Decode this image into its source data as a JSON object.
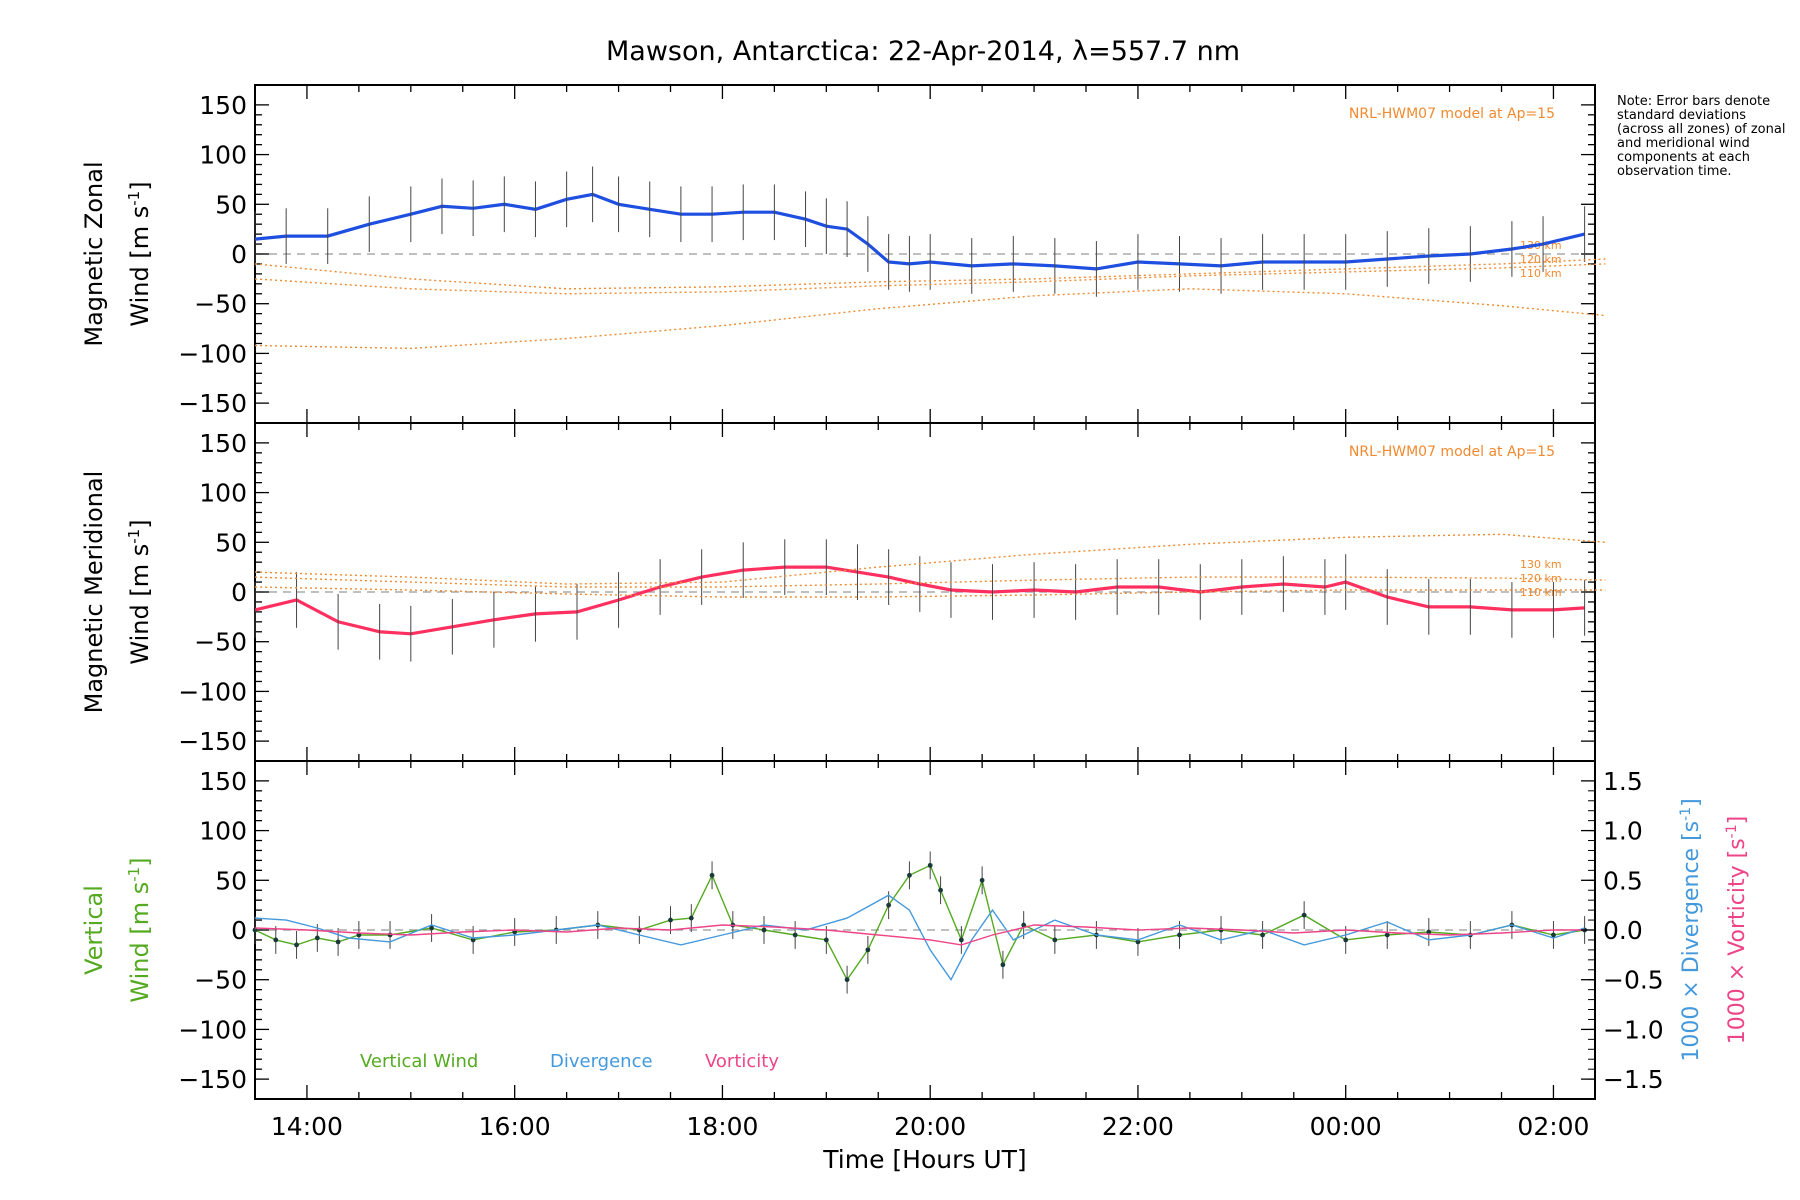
{
  "title": "Mawson, Antarctica: 22-Apr-2014, λ=557.7 nm",
  "note": "Note: Error bars denote standard deviations (across all zones) of zonal and meridional wind components at each observation time.",
  "chart_data": [
    {
      "type": "line",
      "panel": "zonal",
      "ylabel_line1": "Magnetic Zonal",
      "ylabel_line2": "Wind [m s",
      "ylabel_sup": "-1",
      "ylabel_close": "]",
      "ylim": [
        -170,
        170
      ],
      "yticks": [
        -150,
        -100,
        -50,
        0,
        50,
        100,
        150
      ],
      "model_label": "NRL-HWM07 model at Ap=15",
      "altitude_labels": [
        "130 km",
        "120 km",
        "110 km"
      ],
      "series": [
        {
          "color": "#1f4fe0",
          "x": [
            13.5,
            13.8,
            14.2,
            14.6,
            15.0,
            15.3,
            15.6,
            15.9,
            16.2,
            16.5,
            16.75,
            17.0,
            17.3,
            17.6,
            17.9,
            18.2,
            18.5,
            18.8,
            19.0,
            19.2,
            19.4,
            19.6,
            19.8,
            20.0,
            20.4,
            20.8,
            21.2,
            21.6,
            22.0,
            22.4,
            22.8,
            23.2,
            23.6,
            24.0,
            24.4,
            24.8,
            25.2,
            25.6,
            25.9,
            26.3
          ],
          "y": [
            15,
            18,
            18,
            30,
            40,
            48,
            46,
            50,
            45,
            55,
            60,
            50,
            45,
            40,
            40,
            42,
            42,
            35,
            28,
            25,
            10,
            -8,
            -10,
            -8,
            -12,
            -10,
            -12,
            -15,
            -8,
            -10,
            -12,
            -8,
            -8,
            -8,
            -5,
            -2,
            0,
            5,
            10,
            20
          ]
        },
        {
          "color": "#f08a30",
          "style": "dotted",
          "x": [
            13.5,
            15,
            16.5,
            18,
            19.5,
            21,
            22.5,
            24,
            25.5,
            26.5
          ],
          "y": [
            -10,
            -25,
            -35,
            -33,
            -28,
            -25,
            -20,
            -15,
            -10,
            -5
          ]
        },
        {
          "color": "#f08a30",
          "style": "dotted",
          "x": [
            13.5,
            15,
            16.5,
            18,
            19.5,
            21,
            22.5,
            24,
            25.5,
            26.5
          ],
          "y": [
            -25,
            -35,
            -40,
            -38,
            -32,
            -28,
            -22,
            -18,
            -14,
            -10
          ]
        },
        {
          "color": "#f08a30",
          "style": "dotted",
          "x": [
            13.5,
            15,
            16.5,
            18,
            19.5,
            21,
            22.5,
            24,
            25.5,
            26.5
          ],
          "y": [
            -92,
            -95,
            -85,
            -72,
            -55,
            -42,
            -35,
            -40,
            -52,
            -62
          ]
        }
      ]
    },
    {
      "type": "line",
      "panel": "meridional",
      "ylabel_line1": "Magnetic Meridional",
      "ylabel_line2": "Wind [m s",
      "ylabel_sup": "-1",
      "ylabel_close": "]",
      "ylim": [
        -170,
        170
      ],
      "yticks": [
        -150,
        -100,
        -50,
        0,
        50,
        100,
        150
      ],
      "model_label": "NRL-HWM07 model at Ap=15",
      "altitude_labels": [
        "130 km",
        "120 km",
        "110 km"
      ],
      "series": [
        {
          "color": "#ff3060",
          "x": [
            13.5,
            13.9,
            14.3,
            14.7,
            15.0,
            15.4,
            15.8,
            16.2,
            16.6,
            17.0,
            17.4,
            17.8,
            18.2,
            18.6,
            19.0,
            19.3,
            19.6,
            19.9,
            20.2,
            20.6,
            21.0,
            21.4,
            21.8,
            22.2,
            22.6,
            23.0,
            23.4,
            23.8,
            24.0,
            24.4,
            24.8,
            25.2,
            25.6,
            26.0,
            26.3
          ],
          "y": [
            -18,
            -8,
            -30,
            -40,
            -42,
            -35,
            -28,
            -22,
            -20,
            -8,
            5,
            15,
            22,
            25,
            25,
            20,
            15,
            8,
            2,
            0,
            2,
            0,
            5,
            5,
            0,
            5,
            8,
            5,
            10,
            -5,
            -15,
            -15,
            -18,
            -18,
            -16
          ]
        },
        {
          "color": "#f08a30",
          "style": "dotted",
          "x": [
            13.5,
            15,
            16.5,
            18,
            19.5,
            21,
            22.5,
            24,
            25.5,
            26.5
          ],
          "y": [
            20,
            15,
            8,
            10,
            25,
            38,
            48,
            55,
            58,
            50
          ]
        },
        {
          "color": "#f08a30",
          "style": "dotted",
          "x": [
            13.5,
            15,
            16.5,
            18,
            19.5,
            21,
            22.5,
            24,
            25.5,
            26.5
          ],
          "y": [
            15,
            10,
            5,
            5,
            8,
            12,
            15,
            15,
            14,
            12
          ]
        },
        {
          "color": "#f08a30",
          "style": "dotted",
          "x": [
            13.5,
            15,
            16.5,
            18,
            19.5,
            21,
            22.5,
            24,
            25.5,
            26.5
          ],
          "y": [
            5,
            2,
            -2,
            -5,
            -5,
            -3,
            0,
            2,
            2,
            2
          ]
        }
      ]
    },
    {
      "type": "line",
      "panel": "vertical",
      "ylabel_line1": "Vertical",
      "ylabel_line2": "Wind [m s",
      "ylabel_sup": "-1",
      "ylabel_close": "]",
      "ylim": [
        -170,
        170
      ],
      "yticks": [
        -150,
        -100,
        -50,
        0,
        50,
        100,
        150
      ],
      "y2ticks": [
        "1.5",
        "1.0",
        "0.5",
        "0.0",
        "−0.5",
        "−1.0",
        "−1.5"
      ],
      "y2label_div_pre": "1000 × Divergence [s",
      "y2label_vort_pre": "1000 × Vorticity [s",
      "y2label_sup": "-1",
      "y2label_close": "]",
      "legend": [
        "Vertical Wind",
        "Divergence",
        "Vorticity"
      ],
      "series": [
        {
          "name": "Vertical Wind",
          "color": "#55aa22",
          "x": [
            13.5,
            13.7,
            13.9,
            14.1,
            14.3,
            14.5,
            14.8,
            15.2,
            15.6,
            16.0,
            16.4,
            16.8,
            17.2,
            17.5,
            17.7,
            17.9,
            18.1,
            18.4,
            18.7,
            19.0,
            19.2,
            19.4,
            19.6,
            19.8,
            20.0,
            20.1,
            20.3,
            20.5,
            20.7,
            20.9,
            21.2,
            21.6,
            22.0,
            22.4,
            22.8,
            23.2,
            23.6,
            24.0,
            24.4,
            24.8,
            25.2,
            25.6,
            26.0,
            26.3
          ],
          "y": [
            0,
            -10,
            -15,
            -8,
            -12,
            -5,
            -5,
            2,
            -10,
            -2,
            0,
            5,
            0,
            10,
            12,
            55,
            5,
            0,
            -5,
            -10,
            -50,
            -20,
            25,
            55,
            65,
            40,
            -10,
            50,
            -35,
            5,
            -10,
            -5,
            -12,
            -5,
            0,
            -5,
            15,
            -10,
            -5,
            -2,
            -5,
            5,
            -5,
            0
          ]
        },
        {
          "name": "Divergence",
          "color": "#4499dd",
          "x": [
            13.5,
            13.8,
            14.1,
            14.4,
            14.8,
            15.2,
            15.6,
            16.0,
            16.4,
            16.8,
            17.2,
            17.6,
            18.0,
            18.4,
            18.8,
            19.2,
            19.6,
            19.8,
            20.0,
            20.2,
            20.4,
            20.6,
            20.8,
            21.2,
            21.6,
            22.0,
            22.4,
            22.8,
            23.2,
            23.6,
            24.0,
            24.4,
            24.8,
            25.2,
            25.6,
            26.0,
            26.3
          ],
          "y": [
            0.12,
            0.1,
            0.02,
            -0.08,
            -0.12,
            0.05,
            -0.08,
            -0.05,
            0.0,
            0.05,
            -0.05,
            -0.15,
            -0.05,
            0.05,
            0.0,
            0.12,
            0.35,
            0.2,
            -0.2,
            -0.5,
            -0.1,
            0.2,
            -0.1,
            0.1,
            -0.05,
            -0.1,
            0.05,
            -0.1,
            0.0,
            -0.15,
            -0.05,
            0.08,
            -0.1,
            -0.05,
            0.05,
            -0.08,
            0.02
          ]
        },
        {
          "name": "Vorticity",
          "color": "#ee4488",
          "x": [
            13.5,
            14.0,
            14.5,
            15.0,
            15.5,
            16.0,
            16.5,
            17.0,
            17.5,
            18.0,
            18.5,
            19.0,
            19.5,
            20.0,
            20.3,
            20.6,
            21.0,
            21.5,
            22.0,
            22.5,
            23.0,
            23.5,
            24.0,
            24.5,
            25.0,
            25.5,
            26.0,
            26.3
          ],
          "y": [
            0.02,
            0.0,
            -0.03,
            -0.05,
            -0.02,
            0.0,
            -0.02,
            0.02,
            0.0,
            0.05,
            0.03,
            0.0,
            -0.05,
            -0.1,
            -0.15,
            -0.05,
            0.05,
            0.03,
            0.0,
            0.02,
            0.0,
            -0.03,
            0.0,
            -0.03,
            -0.05,
            -0.03,
            0.0,
            0.0
          ]
        }
      ]
    }
  ],
  "xaxis": {
    "label": "Time [Hours UT]",
    "range": [
      13.5,
      26.4
    ],
    "ticks": [
      14,
      16,
      18,
      20,
      22,
      24,
      26
    ],
    "tick_labels": [
      "14:00",
      "16:00",
      "18:00",
      "20:00",
      "22:00",
      "00:00",
      "02:00"
    ]
  }
}
